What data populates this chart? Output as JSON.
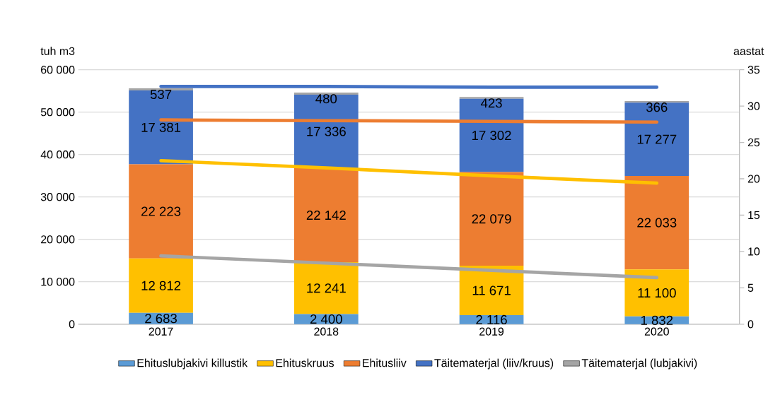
{
  "chart_data": {
    "type": "bar",
    "stacked": true,
    "ylabel": "tuh m3",
    "y2label": "aastat",
    "categories": [
      "2017",
      "2018",
      "2019",
      "2020"
    ],
    "ylim": [
      0,
      60000
    ],
    "yticks": [
      {
        "value": 0,
        "label": "0"
      },
      {
        "value": 10000,
        "label": "10 000"
      },
      {
        "value": 20000,
        "label": "20 000"
      },
      {
        "value": 30000,
        "label": "30 000"
      },
      {
        "value": 40000,
        "label": "40 000"
      },
      {
        "value": 50000,
        "label": "50 000"
      },
      {
        "value": 60000,
        "label": "60 000"
      }
    ],
    "y2lim": [
      0,
      35
    ],
    "y2ticks": [
      0,
      5,
      10,
      15,
      20,
      25,
      30,
      35
    ],
    "grid": "y",
    "legend": "bottom",
    "series": [
      {
        "name": "Ehituslubjakivi killustik",
        "color": "#5b9bd5",
        "values": [
          2683,
          2400,
          2116,
          1832
        ],
        "value_labels": [
          "2 683",
          "2 400",
          "2 116",
          "1 832"
        ]
      },
      {
        "name": "Ehituskruus",
        "color": "#ffc000",
        "values": [
          12812,
          12241,
          11671,
          11100
        ],
        "value_labels": [
          "12 812",
          "12 241",
          "11 671",
          "11 100"
        ]
      },
      {
        "name": "Ehitusliiv",
        "color": "#ed7d31",
        "values": [
          22223,
          22142,
          22079,
          22033
        ],
        "value_labels": [
          "22 223",
          "22 142",
          "22 079",
          "22 033"
        ]
      },
      {
        "name": "Täitematerjal (liiv/kruus)",
        "color": "#4472c4",
        "values": [
          17381,
          17336,
          17302,
          17277
        ],
        "value_labels": [
          "17 381",
          "17 336",
          "17 302",
          "17 277"
        ]
      },
      {
        "name": "Täitematerjal (lubjakivi)",
        "color": "#a5a5a5",
        "values": [
          537,
          480,
          423,
          366
        ],
        "value_labels": [
          "537",
          "480",
          "423",
          "366"
        ]
      },
      {
        "type": "line",
        "axis": "y2",
        "color": "#4472c4",
        "values": [
          32.7,
          32.7,
          32.6,
          32.6
        ]
      },
      {
        "type": "line",
        "axis": "y2",
        "color": "#ed7d31",
        "values": [
          28.1,
          28.0,
          27.9,
          27.8
        ]
      },
      {
        "type": "line",
        "axis": "y2",
        "color": "#ffc000",
        "values": [
          22.5,
          21.5,
          20.4,
          19.4
        ]
      },
      {
        "type": "line",
        "axis": "y2",
        "color": "#a5a5a5",
        "values": [
          9.4,
          8.4,
          7.4,
          6.4
        ]
      }
    ]
  }
}
